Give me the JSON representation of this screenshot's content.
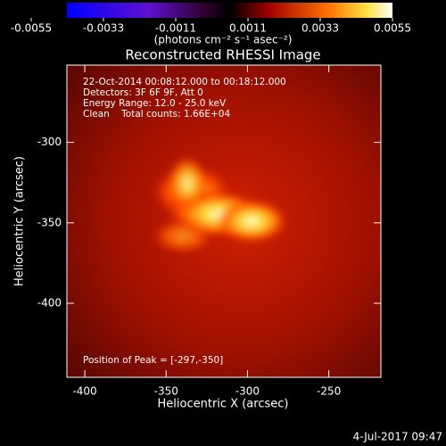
{
  "chart_data": {
    "type": "heatmap",
    "title": "Reconstructed RHESSI Image",
    "x_label": "Heliocentric X (arcsec)",
    "y_label": "Heliocentric Y (arcsec)",
    "xlim": [
      -411,
      -218
    ],
    "ylim": [
      -446,
      -252
    ],
    "xticks": [
      -400,
      -350,
      -300,
      -250
    ],
    "yticks": [
      -300,
      -350,
      -400
    ],
    "colorbar": {
      "lim": [
        -0.0055,
        0.0055
      ],
      "ticks": [
        -0.0055,
        -0.0033,
        -0.0011,
        0.0011,
        0.0033,
        0.0055
      ],
      "label": "(photons cm⁻² s⁻¹ asec⁻²)"
    },
    "annotations": [
      "22-Oct-2014 00:08:12.000 to 00:18:12.000",
      "Detectors: 3F 6F 9F, Att 0",
      "Energy Range: 12.0 - 25.0 keV",
      "Clean    Total counts: 1.66E+04"
    ],
    "peak_text": "Position of Peak = [-297,-350]",
    "timestamp": "4-Jul-2017 09:47"
  }
}
